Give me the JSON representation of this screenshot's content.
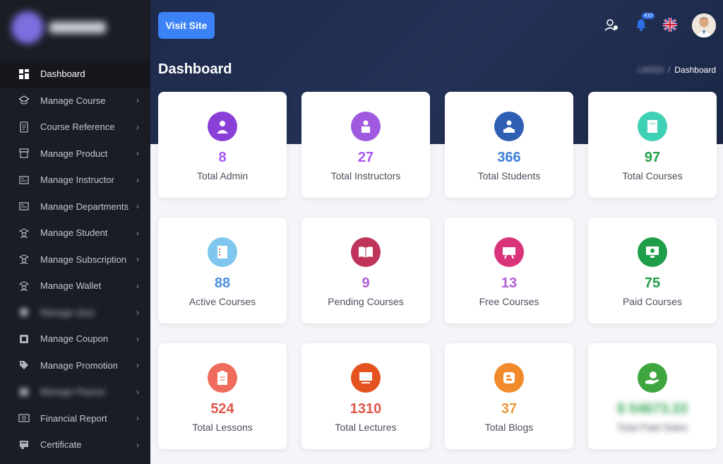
{
  "header": {
    "visit_label": "Visit Site",
    "notif_count": "410",
    "title": "Dashboard",
    "crumb_parent": "LMSDI",
    "crumb_current": "Dashboard"
  },
  "sidebar": {
    "items": [
      {
        "label": "Dashboard",
        "icon": "grid-icon"
      },
      {
        "label": "Manage Course",
        "icon": "graduation-icon"
      },
      {
        "label": "Course Reference",
        "icon": "document-icon"
      },
      {
        "label": "Manage Product",
        "icon": "box-icon"
      },
      {
        "label": "Manage Instructor",
        "icon": "id-card-icon"
      },
      {
        "label": "Manage Departments",
        "icon": "id-card-icon"
      },
      {
        "label": "Manage Student",
        "icon": "student-icon"
      },
      {
        "label": "Manage Subscription",
        "icon": "student-icon"
      },
      {
        "label": "Manage Wallet",
        "icon": "student-icon"
      },
      {
        "label": "Manage Quiz",
        "icon": "question-icon"
      },
      {
        "label": "Manage Coupon",
        "icon": "coupon-icon"
      },
      {
        "label": "Manage Promotion",
        "icon": "tag-icon"
      },
      {
        "label": "Manage Payout",
        "icon": "wallet-icon"
      },
      {
        "label": "Financial Report",
        "icon": "money-icon"
      },
      {
        "label": "Certificate",
        "icon": "certificate-icon"
      }
    ]
  },
  "cards": [
    {
      "value": "8",
      "label": "Total Admin",
      "color": "#a855f7",
      "icon": "admin-icon"
    },
    {
      "value": "27",
      "label": "Total Instructors",
      "color": "#a855f7",
      "icon": "instructor-icon"
    },
    {
      "value": "366",
      "label": "Total Students",
      "color": "#3b7dd8",
      "icon": "student-desk-icon"
    },
    {
      "value": "97",
      "label": "Total Courses",
      "color": "#22a04b",
      "icon": "book-icon"
    },
    {
      "value": "88",
      "label": "Active Courses",
      "color": "#4a90e2",
      "icon": "list-icon"
    },
    {
      "value": "9",
      "label": "Pending Courses",
      "color": "#b35cd6",
      "icon": "open-book-icon"
    },
    {
      "value": "13",
      "label": "Free Courses",
      "color": "#b35cd6",
      "icon": "board-icon"
    },
    {
      "value": "75",
      "label": "Paid Courses",
      "color": "#1f9e4a",
      "icon": "monitor-icon"
    },
    {
      "value": "524",
      "label": "Total Lessons",
      "color": "#e0584a",
      "icon": "clipboard-icon"
    },
    {
      "value": "1310",
      "label": "Total Lectures",
      "color": "#e0584a",
      "icon": "screen-icon"
    },
    {
      "value": "37",
      "label": "Total Blogs",
      "color": "#e99a3c",
      "icon": "blogger-icon"
    },
    {
      "value": "$ 54673.33",
      "label": "Total Paid Sales",
      "color": "#34a853",
      "icon": "money-hand-icon"
    }
  ]
}
